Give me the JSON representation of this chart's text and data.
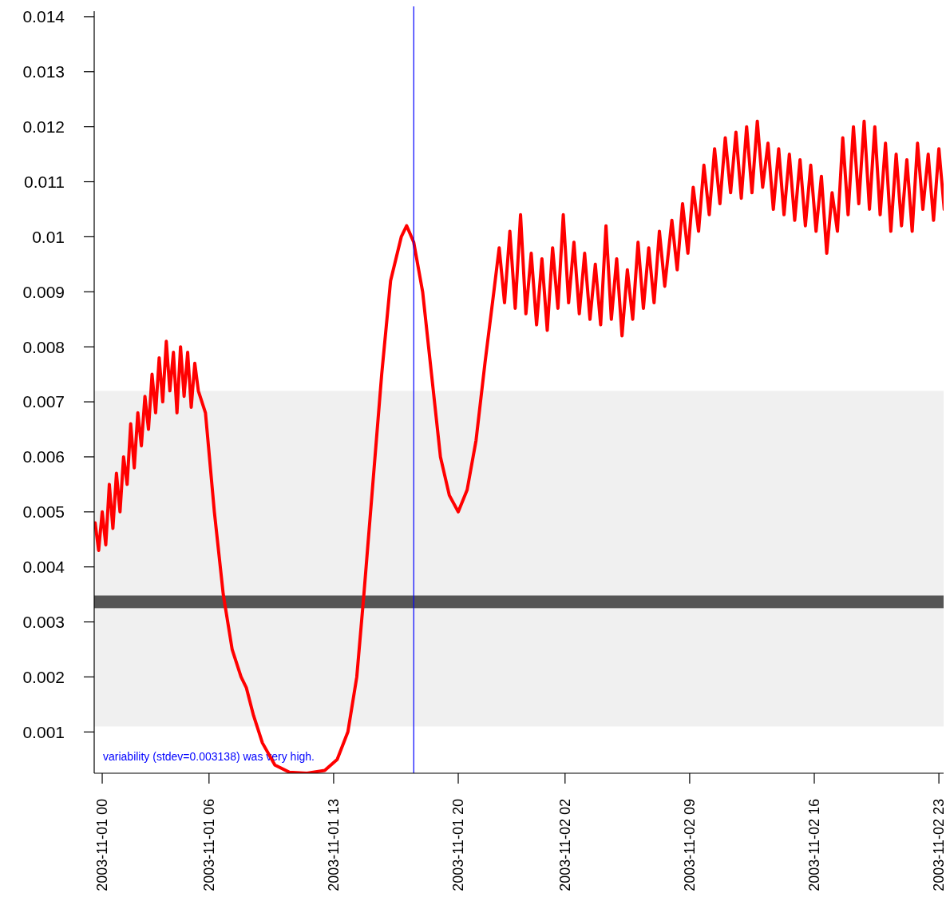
{
  "chart_data": {
    "type": "line",
    "xlim": [
      "2003-10-31T23:33",
      "2003-11-02T23:24"
    ],
    "xticks": [
      {
        "value": "2003-11-01T00:00",
        "label": "2003-11-01 00"
      },
      {
        "value": "2003-11-01T06:00",
        "label": "2003-11-01 06"
      },
      {
        "value": "2003-11-01T13:00",
        "label": "2003-11-01 13"
      },
      {
        "value": "2003-11-01T20:00",
        "label": "2003-11-01 20"
      },
      {
        "value": "2003-11-02T02:00",
        "label": "2003-11-02 02"
      },
      {
        "value": "2003-11-02T09:00",
        "label": "2003-11-02 09"
      },
      {
        "value": "2003-11-02T16:00",
        "label": "2003-11-02 16"
      },
      {
        "value": "2003-11-02T23:00",
        "label": "2003-11-02 23"
      }
    ],
    "ylim": [
      0.00025,
      0.0141
    ],
    "yticks": [
      0.001,
      0.002,
      0.003,
      0.004,
      0.005,
      0.006,
      0.007,
      0.008,
      0.009,
      {
        "value": 0.01,
        "label": "0.01"
      },
      0.011,
      0.012,
      0.013,
      0.014
    ],
    "series": [
      {
        "color": "#ff0000",
        "x": [
          "2003-10-31T23:36",
          "2003-10-31T23:48",
          "2003-11-01T00:00",
          "2003-11-01T00:12",
          "2003-11-01T00:24",
          "2003-11-01T00:36",
          "2003-11-01T00:48",
          "2003-11-01T01:00",
          "2003-11-01T01:12",
          "2003-11-01T01:24",
          "2003-11-01T01:36",
          "2003-11-01T01:48",
          "2003-11-01T02:00",
          "2003-11-01T02:12",
          "2003-11-01T02:24",
          "2003-11-01T02:36",
          "2003-11-01T02:48",
          "2003-11-01T03:00",
          "2003-11-01T03:12",
          "2003-11-01T03:24",
          "2003-11-01T03:36",
          "2003-11-01T03:48",
          "2003-11-01T04:00",
          "2003-11-01T04:12",
          "2003-11-01T04:24",
          "2003-11-01T04:36",
          "2003-11-01T04:48",
          "2003-11-01T05:00",
          "2003-11-01T05:12",
          "2003-11-01T05:24",
          "2003-11-01T05:48",
          "2003-11-01T06:18",
          "2003-11-01T06:48",
          "2003-11-01T07:18",
          "2003-11-01T07:48",
          "2003-11-01T08:06",
          "2003-11-01T08:30",
          "2003-11-01T09:00",
          "2003-11-01T09:42",
          "2003-11-01T10:30",
          "2003-11-01T11:30",
          "2003-11-01T12:30",
          "2003-11-01T13:12",
          "2003-11-01T13:48",
          "2003-11-01T14:18",
          "2003-11-01T14:42",
          "2003-11-01T15:12",
          "2003-11-01T15:42",
          "2003-11-01T16:12",
          "2003-11-01T16:48",
          "2003-11-01T17:06",
          "2003-11-01T17:30",
          "2003-11-01T18:00",
          "2003-11-01T18:30",
          "2003-11-01T19:00",
          "2003-11-01T19:30",
          "2003-11-01T20:00",
          "2003-11-01T20:30",
          "2003-11-01T21:00",
          "2003-11-01T21:30",
          "2003-11-01T22:00",
          "2003-11-01T22:18",
          "2003-11-01T22:36",
          "2003-11-01T22:54",
          "2003-11-01T23:12",
          "2003-11-01T23:30",
          "2003-11-01T23:48",
          "2003-11-02T00:06",
          "2003-11-02T00:24",
          "2003-11-02T00:42",
          "2003-11-02T01:00",
          "2003-11-02T01:18",
          "2003-11-02T01:36",
          "2003-11-02T01:54",
          "2003-11-02T02:12",
          "2003-11-02T02:30",
          "2003-11-02T02:48",
          "2003-11-02T03:06",
          "2003-11-02T03:24",
          "2003-11-02T03:42",
          "2003-11-02T04:00",
          "2003-11-02T04:18",
          "2003-11-02T04:36",
          "2003-11-02T04:54",
          "2003-11-02T05:12",
          "2003-11-02T05:30",
          "2003-11-02T05:48",
          "2003-11-02T06:06",
          "2003-11-02T06:24",
          "2003-11-02T06:42",
          "2003-11-02T07:00",
          "2003-11-02T07:18",
          "2003-11-02T07:36",
          "2003-11-02T08:00",
          "2003-11-02T08:18",
          "2003-11-02T08:36",
          "2003-11-02T08:54",
          "2003-11-02T09:12",
          "2003-11-02T09:30",
          "2003-11-02T09:48",
          "2003-11-02T10:06",
          "2003-11-02T10:24",
          "2003-11-02T10:42",
          "2003-11-02T11:00",
          "2003-11-02T11:18",
          "2003-11-02T11:36",
          "2003-11-02T11:54",
          "2003-11-02T12:12",
          "2003-11-02T12:30",
          "2003-11-02T12:48",
          "2003-11-02T13:06",
          "2003-11-02T13:24",
          "2003-11-02T13:42",
          "2003-11-02T14:00",
          "2003-11-02T14:18",
          "2003-11-02T14:36",
          "2003-11-02T14:54",
          "2003-11-02T15:12",
          "2003-11-02T15:30",
          "2003-11-02T15:48",
          "2003-11-02T16:06",
          "2003-11-02T16:24",
          "2003-11-02T16:42",
          "2003-11-02T17:00",
          "2003-11-02T17:18",
          "2003-11-02T17:36",
          "2003-11-02T17:54",
          "2003-11-02T18:12",
          "2003-11-02T18:30",
          "2003-11-02T18:48",
          "2003-11-02T19:06",
          "2003-11-02T19:24",
          "2003-11-02T19:42",
          "2003-11-02T20:00",
          "2003-11-02T20:18",
          "2003-11-02T20:36",
          "2003-11-02T20:54",
          "2003-11-02T21:12",
          "2003-11-02T21:30",
          "2003-11-02T21:48",
          "2003-11-02T22:06",
          "2003-11-02T22:24",
          "2003-11-02T22:42",
          "2003-11-02T23:00",
          "2003-11-02T23:18"
        ],
        "values": [
          0.0048,
          0.0043,
          0.005,
          0.0044,
          0.0055,
          0.0047,
          0.0057,
          0.005,
          0.006,
          0.0055,
          0.0066,
          0.0058,
          0.0068,
          0.0062,
          0.0071,
          0.0065,
          0.0075,
          0.0068,
          0.0078,
          0.007,
          0.0081,
          0.0072,
          0.0079,
          0.0068,
          0.008,
          0.0071,
          0.0079,
          0.0069,
          0.0077,
          0.0072,
          0.0068,
          0.005,
          0.0035,
          0.0025,
          0.002,
          0.0018,
          0.0013,
          0.0008,
          0.0004,
          0.00027,
          0.00025,
          0.0003,
          0.0005,
          0.001,
          0.002,
          0.0035,
          0.0055,
          0.0075,
          0.0092,
          0.01,
          0.0102,
          0.0099,
          0.009,
          0.0075,
          0.006,
          0.0053,
          0.005,
          0.0054,
          0.0063,
          0.0077,
          0.009,
          0.0098,
          0.0088,
          0.0101,
          0.0087,
          0.0104,
          0.0086,
          0.0097,
          0.0084,
          0.0096,
          0.0083,
          0.0098,
          0.0087,
          0.0104,
          0.0088,
          0.0099,
          0.0086,
          0.0097,
          0.0085,
          0.0095,
          0.0084,
          0.0102,
          0.0085,
          0.0096,
          0.0082,
          0.0094,
          0.0085,
          0.0099,
          0.0087,
          0.0098,
          0.0088,
          0.0101,
          0.0091,
          0.0103,
          0.0094,
          0.0106,
          0.0097,
          0.0109,
          0.0101,
          0.0113,
          0.0104,
          0.0116,
          0.0106,
          0.0118,
          0.0108,
          0.0119,
          0.0107,
          0.012,
          0.0108,
          0.0121,
          0.0109,
          0.0117,
          0.0105,
          0.0116,
          0.0104,
          0.0115,
          0.0103,
          0.0114,
          0.0102,
          0.0113,
          0.0101,
          0.0111,
          0.0097,
          0.0108,
          0.0101,
          0.0118,
          0.0104,
          0.012,
          0.0106,
          0.0121,
          0.0105,
          0.012,
          0.0104,
          0.0117,
          0.0101,
          0.0115,
          0.0102,
          0.0114,
          0.0101,
          0.0117,
          0.0105,
          0.0115,
          0.0103,
          0.0116,
          0.0105
        ]
      }
    ],
    "ref_lines": [
      {
        "axis": "x",
        "value": "2003-11-01T17:30",
        "color": "#0000ff"
      }
    ],
    "bands": [
      {
        "axis": "y",
        "from": 0.0011,
        "to": 0.0072,
        "color": "#f0f0f0"
      },
      {
        "axis": "y",
        "from": 0.00325,
        "to": 0.00348,
        "color": "#555555"
      }
    ],
    "annotations": [
      "variability (stdev=0.003138) was very high."
    ],
    "grid": false,
    "marker": "none",
    "line_style": "solid"
  }
}
